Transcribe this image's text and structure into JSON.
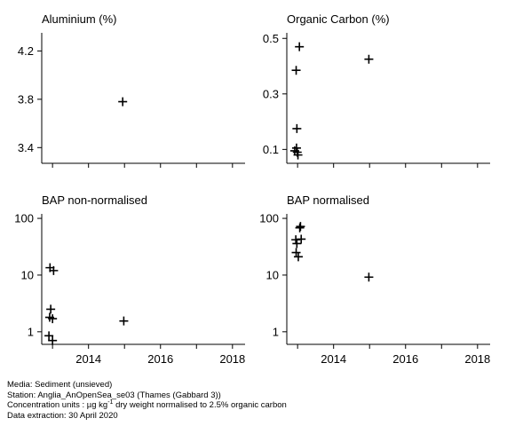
{
  "chart_data": [
    {
      "type": "scatter",
      "title": "Aluminium (%)",
      "y_scale": "linear",
      "ylim": [
        3.27,
        4.35
      ],
      "xlim": [
        2012.7,
        2018.35
      ],
      "y_ticks": [
        3.4,
        3.8,
        4.2
      ],
      "y_tick_labels": [
        "3.4",
        "3.8",
        "4.2"
      ],
      "x_ticks": [
        2013,
        2014,
        2015,
        2016,
        2017,
        2018
      ],
      "x_tick_labels": [],
      "points": [
        {
          "x": 2014.95,
          "y": 3.78
        }
      ]
    },
    {
      "type": "scatter",
      "title": "Organic Carbon (%)",
      "y_scale": "linear",
      "ylim": [
        0.05,
        0.52
      ],
      "xlim": [
        2012.7,
        2018.35
      ],
      "y_ticks": [
        0.1,
        0.3,
        0.5
      ],
      "y_tick_labels": [
        "0.1",
        "0.3",
        "0.5"
      ],
      "x_ticks": [
        2013,
        2014,
        2015,
        2016,
        2017,
        2018
      ],
      "x_tick_labels": [],
      "points": [
        {
          "x": 2013.05,
          "y": 0.47
        },
        {
          "x": 2012.96,
          "y": 0.385
        },
        {
          "x": 2012.98,
          "y": 0.175
        },
        {
          "x": 2012.97,
          "y": 0.105
        },
        {
          "x": 2012.92,
          "y": 0.095
        },
        {
          "x": 2012.99,
          "y": 0.09
        },
        {
          "x": 2013.01,
          "y": 0.08
        },
        {
          "x": 2014.98,
          "y": 0.425
        }
      ]
    },
    {
      "type": "scatter",
      "title": "BAP non-normalised",
      "y_scale": "log",
      "ylim": [
        0.6,
        120
      ],
      "xlim": [
        2012.7,
        2018.35
      ],
      "y_ticks": [
        1,
        10,
        100
      ],
      "y_tick_labels": [
        "1",
        "10",
        "100"
      ],
      "x_ticks": [
        2013,
        2014,
        2015,
        2016,
        2017,
        2018
      ],
      "x_tick_labels": [
        "2014",
        "2016",
        "2018"
      ],
      "points": [
        {
          "x": 2012.93,
          "y": 13.5
        },
        {
          "x": 2013.03,
          "y": 12
        },
        {
          "x": 2012.95,
          "y": 2.5
        },
        {
          "x": 2012.92,
          "y": 1.8
        },
        {
          "x": 2013.0,
          "y": 1.7
        },
        {
          "x": 2012.9,
          "y": 0.85
        },
        {
          "x": 2013.0,
          "y": 0.7
        },
        {
          "x": 2014.98,
          "y": 1.55
        }
      ]
    },
    {
      "type": "scatter",
      "title": "BAP normalised",
      "y_scale": "log",
      "ylim": [
        0.6,
        120
      ],
      "xlim": [
        2012.7,
        2018.35
      ],
      "y_ticks": [
        1,
        10,
        100
      ],
      "y_tick_labels": [
        "1",
        "10",
        "100"
      ],
      "x_ticks": [
        2013,
        2014,
        2015,
        2016,
        2017,
        2018
      ],
      "x_tick_labels": [
        "2014",
        "2016",
        "2018"
      ],
      "points": [
        {
          "x": 2013.08,
          "y": 72
        },
        {
          "x": 2013.06,
          "y": 68
        },
        {
          "x": 2012.95,
          "y": 42
        },
        {
          "x": 2013.1,
          "y": 43
        },
        {
          "x": 2012.98,
          "y": 36
        },
        {
          "x": 2012.96,
          "y": 25
        },
        {
          "x": 2013.02,
          "y": 21
        },
        {
          "x": 2014.98,
          "y": 9.2
        }
      ]
    }
  ],
  "footer": {
    "media": "Media: Sediment (unsieved)",
    "station": "Station: Anglia_AnOpenSea_se03 (Thames (Gabbard 3))",
    "units_prefix": "Concentration units : µg kg",
    "units_sup": "-1",
    "units_suffix": " dry weight normalised to 2.5% organic carbon",
    "extraction": "Data extraction: 30 April 2020"
  }
}
